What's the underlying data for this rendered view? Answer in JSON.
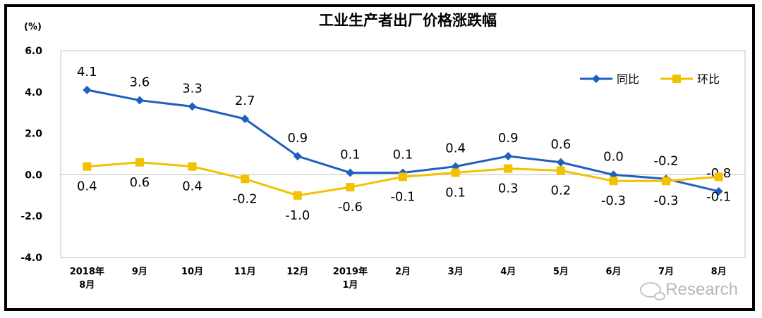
{
  "chart_data": {
    "type": "line",
    "title": "工业生产者出厂价格涨跌幅",
    "ylabel": "(%)",
    "ylim": [
      -4.0,
      6.0
    ],
    "yticks": [
      "6.0",
      "4.0",
      "2.0",
      "0.0",
      "-2.0",
      "-4.0"
    ],
    "ytick_values": [
      6,
      4,
      2,
      0,
      -2,
      -4
    ],
    "grid": false,
    "legend_position": "top-right",
    "categories": [
      [
        "2018年",
        "8月"
      ],
      [
        "9月"
      ],
      [
        "10月"
      ],
      [
        "11月"
      ],
      [
        "12月"
      ],
      [
        "2019年",
        "1月"
      ],
      [
        "2月"
      ],
      [
        "3月"
      ],
      [
        "4月"
      ],
      [
        "5月"
      ],
      [
        "6月"
      ],
      [
        "7月"
      ],
      [
        "8月"
      ]
    ],
    "series": [
      {
        "name": "同比",
        "color": "#1f5fbf",
        "marker": "diamond",
        "values": [
          4.1,
          3.6,
          3.3,
          2.7,
          0.9,
          0.1,
          0.1,
          0.4,
          0.9,
          0.6,
          0.0,
          -0.2,
          -0.8
        ],
        "labels": [
          "4.1",
          "3.6",
          "3.3",
          "2.7",
          "0.9",
          "0.1",
          "0.1",
          "0.4",
          "0.9",
          "0.6",
          "0.0",
          "-0.2",
          "-0.8"
        ]
      },
      {
        "name": "环比",
        "color": "#f2c200",
        "marker": "square",
        "values": [
          0.4,
          0.6,
          0.4,
          -0.2,
          -1.0,
          -0.6,
          -0.1,
          0.1,
          0.3,
          0.2,
          -0.3,
          -0.3,
          -0.1
        ],
        "labels": [
          "0.4",
          "0.6",
          "0.4",
          "-0.2",
          "-1.0",
          "-0.6",
          "-0.1",
          "0.1",
          "0.3",
          "0.2",
          "-0.3",
          "-0.3",
          "-0.1"
        ]
      }
    ]
  },
  "watermark": {
    "text": "Research",
    "icon": "wechat-icon"
  }
}
